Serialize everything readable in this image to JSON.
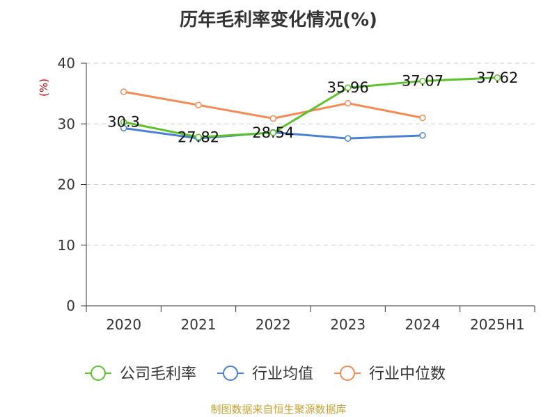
{
  "colors": {
    "title": "#333333",
    "axis": "#333333",
    "grid": "#cccccc",
    "unit": "#cc0000",
    "source": "#c8a032"
  },
  "source_text": "制图数据来自恒生聚源数据库",
  "chart_data": {
    "type": "line",
    "title": "历年毛利率变化情况(%)",
    "ylabel": "(%)",
    "xlabel": "",
    "categories": [
      "2020",
      "2021",
      "2022",
      "2023",
      "2024",
      "2025H1"
    ],
    "ylim": [
      0,
      40
    ],
    "yticks": [
      0,
      10,
      20,
      30,
      40
    ],
    "grid": true,
    "legend": "bottom",
    "series": [
      {
        "name": "公司毛利率",
        "color": "#5bc229",
        "values": [
          30.3,
          27.82,
          28.54,
          35.96,
          37.07,
          37.62
        ],
        "labels": [
          "30.3",
          "27.82",
          "28.54",
          "35.96",
          "37.07",
          "37.62"
        ]
      },
      {
        "name": "行业均值",
        "color": "#4a7fd6",
        "values": [
          29.3,
          27.6,
          28.6,
          27.6,
          28.1,
          null
        ]
      },
      {
        "name": "行业中位数",
        "color": "#f58b52",
        "values": [
          35.3,
          33.1,
          30.9,
          33.4,
          31.0,
          null
        ]
      }
    ]
  }
}
